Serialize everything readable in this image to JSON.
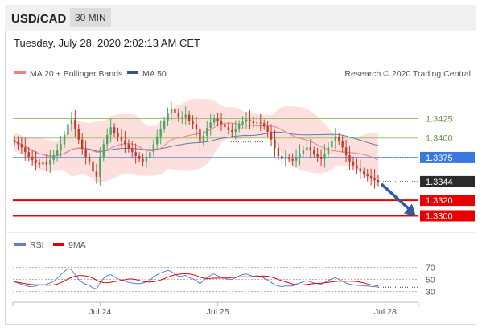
{
  "header": {
    "symbol": "USD/CAD",
    "interval": "30 MIN"
  },
  "timestamp": "Tuesday, July 28, 2020 2:02:13 AM CET",
  "legend": {
    "ma20_label": "MA 20 + Bollinger Bands",
    "ma50_label": "MA 50",
    "credit": "Research © 2020 Trading Central"
  },
  "rsi_legend": {
    "rsi_label": "RSI",
    "ma_label": "9MA"
  },
  "colors": {
    "ma20": "#f08080",
    "ma50": "#2f5597",
    "band_fill": "#fde0de",
    "up_candle": "#4aa564",
    "down_candle": "#c0392b",
    "resistance": "#9dc26c",
    "pivot": "#3a78e0",
    "support": "#e60000",
    "arrow": "#2e5c9e",
    "rsi": "#5b7fd8",
    "rsi_ma": "#e60000"
  },
  "chart_data": [
    {
      "type": "candlestick",
      "title": "USD/CAD",
      "interval": "30 MIN",
      "ylim": [
        1.3285,
        1.347
      ],
      "x_ticks": [
        {
          "label": "Jul 24",
          "index": 24
        },
        {
          "label": "Jul 25",
          "index": 57
        },
        {
          "label": "Jul 28",
          "index": 104
        }
      ],
      "series": [
        {
          "name": "MA 20 + Bollinger Bands",
          "kind": "line"
        },
        {
          "name": "MA 50",
          "kind": "line"
        }
      ],
      "levels": [
        {
          "value": 1.3425,
          "label": "1.3425",
          "kind": "resistance"
        },
        {
          "value": 1.34,
          "label": "1.3400",
          "kind": "resistance"
        },
        {
          "value": 1.3375,
          "label": "1.3375",
          "kind": "pivot"
        },
        {
          "value": 1.3344,
          "label": "1.3344",
          "kind": "last"
        },
        {
          "value": 1.332,
          "label": "1.3320",
          "kind": "support"
        },
        {
          "value": 1.33,
          "label": "1.3300",
          "kind": "support"
        }
      ],
      "close": [
        1.3395,
        1.3392,
        1.3388,
        1.3382,
        1.3376,
        1.3372,
        1.3368,
        1.3366,
        1.337,
        1.3366,
        1.3372,
        1.3378,
        1.3384,
        1.3392,
        1.3404,
        1.3418,
        1.3424,
        1.3412,
        1.3398,
        1.3386,
        1.3376,
        1.337,
        1.3357,
        1.335,
        1.3376,
        1.3392,
        1.3404,
        1.3414,
        1.3406,
        1.3402,
        1.3397,
        1.3392,
        1.3387,
        1.3382,
        1.3377,
        1.3373,
        1.337,
        1.3374,
        1.3382,
        1.3392,
        1.3402,
        1.3412,
        1.3422,
        1.3432,
        1.3437,
        1.3432,
        1.3426,
        1.3426,
        1.343,
        1.3422,
        1.3418,
        1.3411,
        1.3395,
        1.3403,
        1.3413,
        1.342,
        1.3425,
        1.3422,
        1.3418,
        1.3414,
        1.341,
        1.3408,
        1.3412,
        1.3418,
        1.3421,
        1.3424,
        1.3422,
        1.3419,
        1.342,
        1.3419,
        1.3415,
        1.3408,
        1.3398,
        1.3387,
        1.3377,
        1.3373,
        1.3374,
        1.3373,
        1.3371,
        1.3376,
        1.338,
        1.3384,
        1.3388,
        1.3384,
        1.338,
        1.3376,
        1.3373,
        1.338,
        1.3388,
        1.3396,
        1.3402,
        1.3396,
        1.3388,
        1.3378,
        1.337,
        1.3365,
        1.3361,
        1.3357,
        1.3353,
        1.3351,
        1.3348,
        1.3346,
        1.3344
      ],
      "rsi": [
        46,
        44,
        42,
        40,
        38,
        38,
        39,
        41,
        40,
        42,
        44,
        47,
        52,
        58,
        63,
        68,
        66,
        58,
        50,
        45,
        42,
        40,
        36,
        34,
        44,
        52,
        56,
        58,
        54,
        51,
        49,
        47,
        45,
        44,
        43,
        43,
        44,
        46,
        49,
        54,
        58,
        61,
        63,
        65,
        63,
        59,
        55,
        55,
        57,
        53,
        51,
        48,
        43,
        48,
        53,
        57,
        59,
        56,
        54,
        52,
        50,
        50,
        53,
        56,
        58,
        59,
        57,
        55,
        56,
        55,
        52,
        49,
        45,
        41,
        39,
        38,
        39,
        39,
        39,
        42,
        44,
        46,
        48,
        46,
        44,
        43,
        42,
        45,
        48,
        51,
        53,
        50,
        47,
        44,
        42,
        41,
        40,
        40,
        39,
        39,
        38,
        38,
        37
      ],
      "rsi_ticks": [
        30,
        50,
        70
      ],
      "rsi_ylim": [
        20,
        80
      ]
    }
  ]
}
